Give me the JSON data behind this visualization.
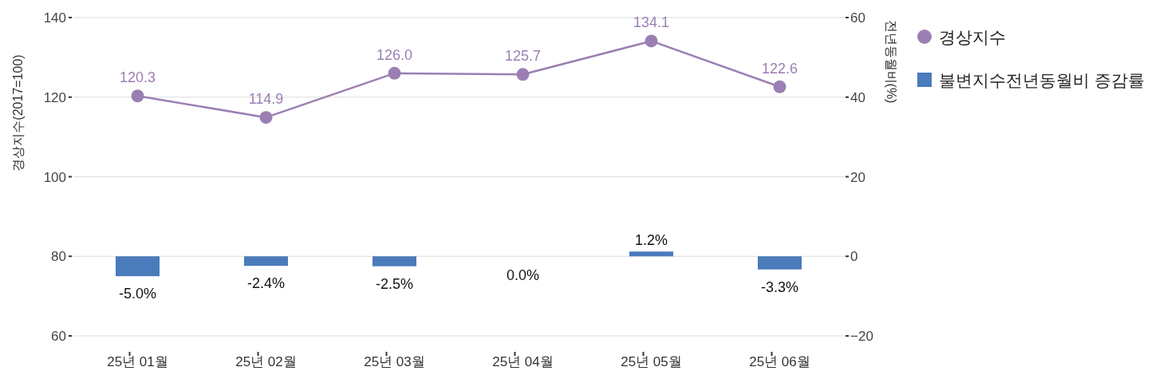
{
  "chart_data": {
    "type": "line",
    "categories": [
      "25년 01월",
      "25년 02월",
      "25년 03월",
      "25년 04월",
      "25년 05월",
      "25년 06월"
    ],
    "ylabel": "경상지수(2017=100)",
    "y2label": "전년동월비(%)",
    "ylim": [
      60,
      140
    ],
    "yticks": [
      60,
      80,
      100,
      120,
      140
    ],
    "y2lim": [
      -20,
      60
    ],
    "y2ticks": [
      {
        "value": -20,
        "label": "−20"
      },
      0,
      20,
      40,
      60
    ],
    "grid": "y",
    "legend": "right",
    "marker": "circle",
    "series": [
      {
        "name": "경상지수",
        "color": "#9b7fb3",
        "values": [
          120.3,
          114.9,
          126.0,
          125.7,
          134.1,
          122.6
        ],
        "value_labels": [
          "120.3",
          "114.9",
          "126.0",
          "125.7",
          "134.1",
          "122.6"
        ]
      },
      {
        "name": "불변지수전년동월비 증감률",
        "type": "bar",
        "axis": "y2",
        "color": "#4a7bbb",
        "values": [
          -5.0,
          -2.4,
          -2.5,
          0.0,
          1.2,
          -3.3
        ],
        "value_labels": [
          "-5.0%",
          "-2.4%",
          "-2.5%",
          "0.0%",
          "1.2%",
          "-3.3%"
        ]
      }
    ]
  }
}
